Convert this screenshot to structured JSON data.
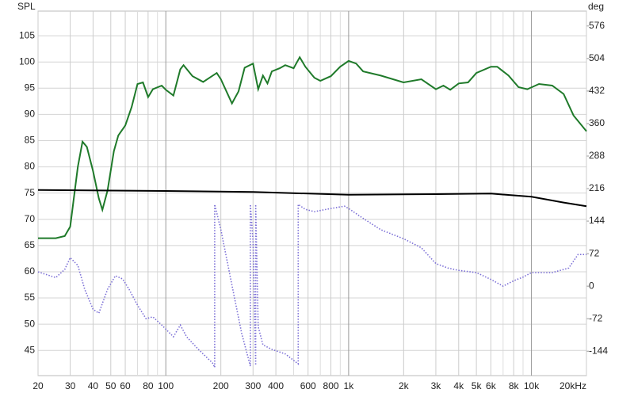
{
  "chart_data": {
    "type": "line",
    "ylabel": "SPL",
    "y2label": "deg",
    "xscale": "log",
    "grid": true,
    "xlim": [
      20,
      20000
    ],
    "xticks": [
      20,
      30,
      40,
      50,
      60,
      80,
      100,
      200,
      300,
      400,
      600,
      800,
      {
        "value": 1000,
        "label": "1k"
      },
      {
        "value": 2000,
        "label": "2k"
      },
      {
        "value": 3000,
        "label": "3k"
      },
      {
        "value": 4000,
        "label": "4k"
      },
      {
        "value": 5000,
        "label": "5k"
      },
      {
        "value": 6000,
        "label": "6k"
      },
      {
        "value": 8000,
        "label": "8k"
      },
      {
        "value": 10000,
        "label": "10k"
      },
      {
        "value": 20000,
        "label": "20kHz"
      }
    ],
    "xminorticks": [
      70,
      90,
      500,
      700,
      900,
      7000,
      9000
    ],
    "ylim": [
      40.2,
      109.7
    ],
    "yticks": [
      45,
      50,
      55,
      60,
      65,
      70,
      75,
      80,
      85,
      90,
      95,
      100,
      105
    ],
    "y2lim": [
      -198,
      609
    ],
    "y2ticks": [
      -144,
      -72,
      0,
      72,
      144,
      216,
      288,
      360,
      432,
      504,
      576
    ],
    "series": [
      {
        "color": "#1f7a2a",
        "style": "solid",
        "x": [
          20,
          25,
          28,
          30,
          33,
          35,
          37,
          40,
          43,
          45,
          48,
          52,
          55,
          60,
          65,
          70,
          75,
          80,
          85,
          95,
          100,
          110,
          120,
          125,
          140,
          160,
          190,
          200,
          230,
          250,
          270,
          300,
          320,
          340,
          360,
          380,
          420,
          450,
          500,
          540,
          580,
          650,
          700,
          800,
          900,
          1000,
          1100,
          1200,
          1500,
          2000,
          2500,
          3000,
          3300,
          3600,
          4000,
          4500,
          5000,
          6000,
          6500,
          7500,
          8500,
          9500,
          11000,
          13000,
          15000,
          17000,
          20000
        ],
        "values": [
          66.4,
          66.4,
          66.8,
          68.6,
          80,
          84.8,
          83.8,
          79.2,
          74,
          71.8,
          75.5,
          83,
          86,
          87.9,
          91.4,
          95.8,
          96.1,
          93.3,
          94.8,
          95.5,
          94.7,
          93.6,
          98.6,
          99.4,
          97.3,
          96.2,
          97.9,
          96.7,
          92.1,
          94.4,
          98.9,
          99.7,
          94.8,
          97.4,
          95.9,
          98.2,
          98.8,
          99.4,
          98.8,
          100.9,
          99.1,
          97,
          96.4,
          97.3,
          99.1,
          100.2,
          99.7,
          98.2,
          97.4,
          96.1,
          96.7,
          94.8,
          95.5,
          94.7,
          95.9,
          96.1,
          97.9,
          99.1,
          99.1,
          97.4,
          95.2,
          94.8,
          95.8,
          95.5,
          93.9,
          89.8,
          86.8
        ]
      },
      {
        "color": "#000000",
        "style": "solid",
        "x": [
          20,
          100,
          300,
          1000,
          3000,
          6000,
          10000,
          15000,
          20000
        ],
        "values": [
          75.6,
          75.4,
          75.2,
          74.7,
          74.8,
          74.9,
          74.3,
          73.2,
          72.5
        ]
      },
      {
        "color": "#7b6fd6",
        "style": "dotted",
        "axis": "y2",
        "x": [
          20,
          25,
          28,
          30,
          33,
          36,
          40,
          43,
          48,
          53,
          58,
          63,
          70,
          78,
          85,
          95,
          110,
          120,
          130,
          150,
          180,
          185,
          185,
          200,
          230,
          260,
          290,
          290,
          300,
          310,
          310,
          320,
          340,
          380,
          450,
          530,
          530,
          580,
          650,
          800,
          950,
          1000,
          1200,
          1500,
          2000,
          2500,
          3000,
          3500,
          4000,
          5000,
          6000,
          7000,
          8000,
          9000,
          10000,
          13000,
          16000,
          18000,
          20000
        ],
        "values": [
          31.6,
          19,
          37,
          63,
          46,
          -7,
          -51,
          -60,
          -7,
          23,
          16,
          -7,
          -42,
          -72,
          -68,
          -86,
          -112,
          -86,
          -112,
          -139,
          -170,
          -180,
          181,
          125,
          2,
          -104,
          -177,
          181,
          100,
          -175,
          181,
          -90,
          -130,
          -140,
          -150,
          -172,
          181,
          170,
          165,
          172,
          177,
          172,
          150,
          125,
          105,
          85,
          50,
          40,
          35,
          30,
          15,
          0,
          12,
          20,
          30,
          30,
          40,
          70,
          70
        ]
      }
    ]
  }
}
